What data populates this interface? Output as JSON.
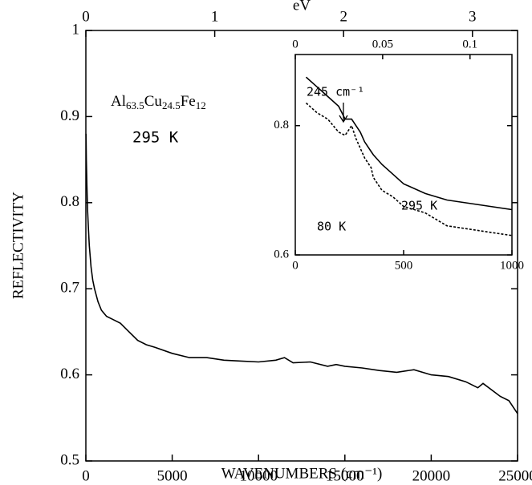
{
  "chart_data": [
    {
      "type": "line",
      "ylabel": "REFLECTIVITY",
      "xlabel": "WAVENUMBERS (cm⁻¹)",
      "x2label": "eV",
      "x": [
        10,
        30,
        60,
        100,
        150,
        200,
        300,
        400,
        500,
        700,
        900,
        1200,
        1500,
        2000,
        2500,
        3000,
        3500,
        4000,
        5000,
        6000,
        7000,
        8000,
        9000,
        10000,
        11000,
        11500,
        12000,
        13000,
        14000,
        14500,
        15000,
        16000,
        17000,
        18000,
        19000,
        20000,
        21000,
        22000,
        22700,
        23000,
        24000,
        24500,
        25000
      ],
      "values": [
        0.88,
        0.85,
        0.82,
        0.79,
        0.77,
        0.75,
        0.725,
        0.71,
        0.7,
        0.685,
        0.675,
        0.668,
        0.665,
        0.66,
        0.65,
        0.64,
        0.635,
        0.632,
        0.625,
        0.62,
        0.62,
        0.617,
        0.616,
        0.615,
        0.617,
        0.62,
        0.614,
        0.615,
        0.61,
        0.612,
        0.61,
        0.608,
        0.605,
        0.603,
        0.606,
        0.6,
        0.598,
        0.592,
        0.585,
        0.59,
        0.575,
        0.57,
        0.555
      ],
      "color": "#000000",
      "xlim": [
        0,
        25000
      ],
      "xticks": [
        0,
        5000,
        10000,
        15000,
        20000,
        25000
      ],
      "x2lim": [
        0,
        3.35
      ],
      "x2ticks": [
        0,
        1,
        2,
        3
      ],
      "ylim": [
        0.5,
        1
      ],
      "yticks": [
        0.5,
        0.6,
        0.7,
        0.8,
        0.9,
        1
      ],
      "annotations": {
        "formula": [
          "Al",
          "63.5",
          "Cu",
          "24.5",
          "Fe",
          "12"
        ],
        "temperature": "295 K"
      }
    },
    {
      "type": "line",
      "x": [
        50,
        100,
        150,
        200,
        230,
        260,
        280,
        300,
        320,
        350,
        360,
        400,
        450,
        500,
        600,
        700,
        800,
        900,
        1000
      ],
      "series": [
        {
          "name": "295 K",
          "color": "#000000",
          "dash": false,
          "values": [
            0.875,
            0.86,
            0.845,
            0.83,
            0.81,
            0.81,
            0.8,
            0.79,
            0.775,
            0.76,
            0.755,
            0.74,
            0.725,
            0.71,
            0.695,
            0.685,
            0.68,
            0.675,
            0.67
          ]
        },
        {
          "name": "80 K",
          "color": "#000000",
          "dash": true,
          "values": [
            0.835,
            0.82,
            0.81,
            0.79,
            0.785,
            0.8,
            0.78,
            0.765,
            0.75,
            0.735,
            0.72,
            0.7,
            0.69,
            0.675,
            0.665,
            0.645,
            0.64,
            0.635,
            0.63
          ]
        }
      ],
      "xlim": [
        0,
        1000
      ],
      "xticks": [
        0,
        500,
        1000
      ],
      "x2lim": [
        0,
        0.124
      ],
      "x2ticks": [
        0,
        0.05,
        0.1
      ],
      "ylim": [
        0.6,
        0.91
      ],
      "yticks": [
        0.6,
        0.8
      ],
      "annotations": {
        "peak": "245 cm⁻¹"
      }
    }
  ]
}
